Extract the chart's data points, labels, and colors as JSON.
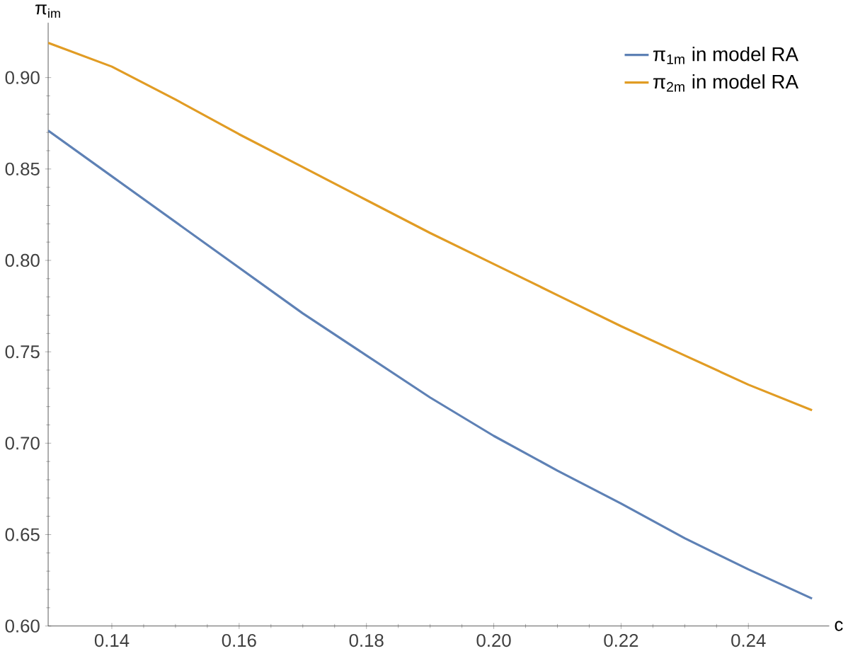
{
  "chart_data": {
    "type": "line",
    "xlabel": "c",
    "ylabel": "π$_{im}$",
    "x": [
      0.13,
      0.14,
      0.15,
      0.16,
      0.17,
      0.18,
      0.19,
      0.2,
      0.21,
      0.22,
      0.23,
      0.24,
      0.25
    ],
    "series": [
      {
        "name": "π$_{1m}$ in model RA",
        "color": "#5e81b5",
        "values": [
          0.871,
          0.846,
          0.821,
          0.796,
          0.771,
          0.748,
          0.725,
          0.704,
          0.685,
          0.667,
          0.648,
          0.631,
          0.615
        ]
      },
      {
        "name": "π$_{2m}$ in model RA",
        "color": "#e19c24",
        "values": [
          0.919,
          0.906,
          0.888,
          0.869,
          0.851,
          0.833,
          0.815,
          0.798,
          0.781,
          0.764,
          0.748,
          0.732,
          0.718
        ]
      }
    ],
    "xlim": [
      0.13,
      0.2527
    ],
    "ylim": [
      0.6,
      0.93
    ],
    "xticks": [
      0.14,
      0.16,
      0.18,
      {
        "value": 0.2,
        "label": "0.20"
      },
      0.22,
      0.24
    ],
    "yticks": [
      {
        "value": 0.6,
        "label": "0.60"
      },
      0.65,
      {
        "value": 0.7,
        "label": "0.70"
      },
      0.75,
      {
        "value": 0.8,
        "label": "0.80"
      },
      0.85,
      {
        "value": 0.9,
        "label": "0.90"
      }
    ],
    "grid": false,
    "legend": "top right",
    "marker": "none",
    "line_style": "solid"
  }
}
